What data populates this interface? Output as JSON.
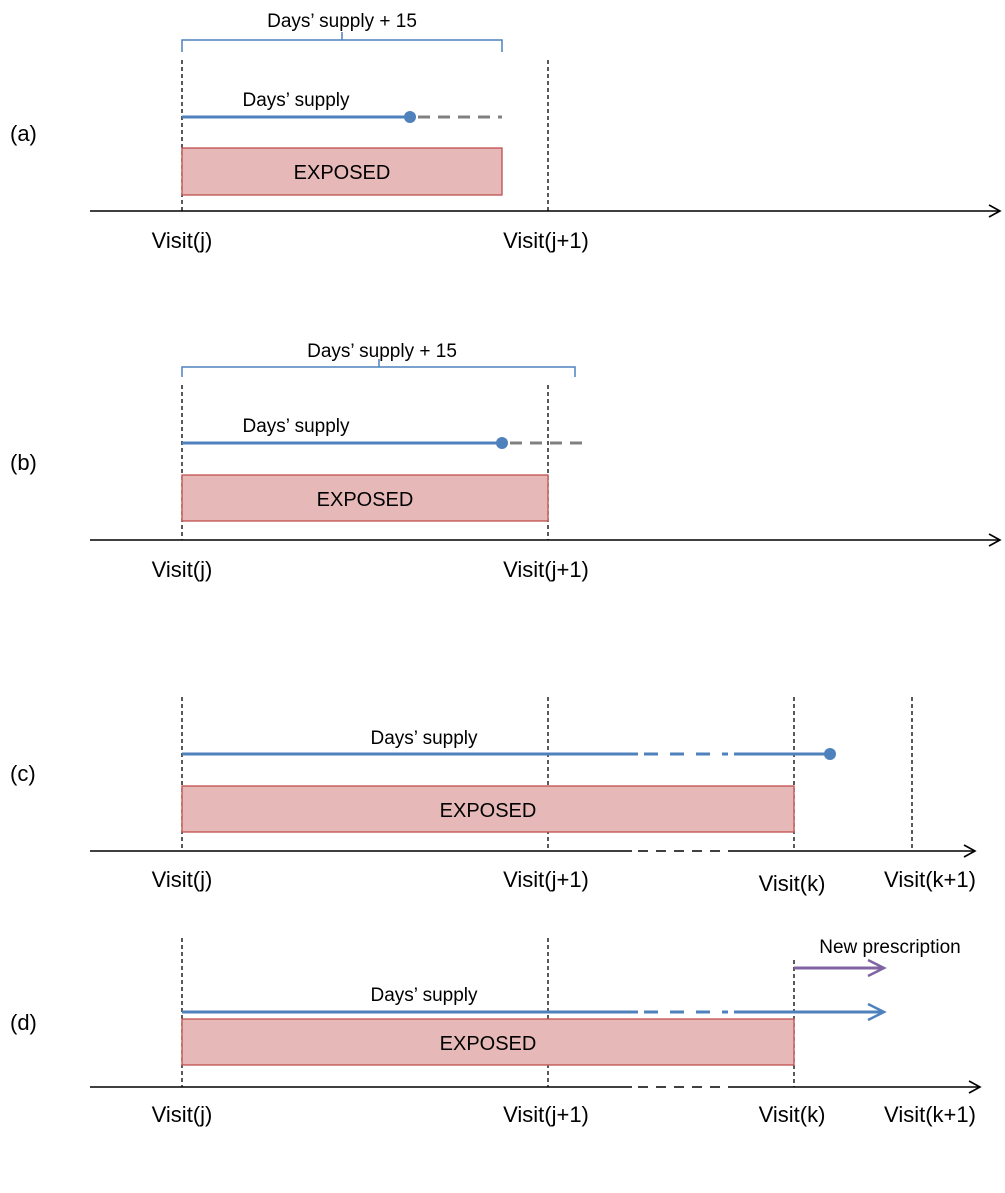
{
  "panels": [
    {
      "label": "(a)",
      "brace_label": "Days’ supply + 15",
      "supply_label": "Days’ supply",
      "exposed_label": "EXPOSED",
      "visits": [
        "Visit(j)",
        "Visit(j+1)"
      ]
    },
    {
      "label": "(b)",
      "brace_label": "Days’ supply + 15",
      "supply_label": "Days’ supply",
      "exposed_label": "EXPOSED",
      "visits": [
        "Visit(j)",
        "Visit(j+1)"
      ]
    },
    {
      "label": "(c)",
      "supply_label": "Days’ supply",
      "exposed_label": "EXPOSED",
      "visits": [
        "Visit(j)",
        "Visit(j+1)",
        "Visit(k)",
        "Visit(k+1)"
      ]
    },
    {
      "label": "(d)",
      "supply_label": "Days’ supply",
      "exposed_label": "EXPOSED",
      "new_prescription_label": "New prescription",
      "visits": [
        "Visit(j)",
        "Visit(j+1)",
        "Visit(k)",
        "Visit(k+1)"
      ]
    }
  ],
  "colors": {
    "supply_line": "#4F81BD",
    "dashed_extension": "#808080",
    "exposed_fill": "#E6B8B7",
    "exposed_border": "#C0504D",
    "brace": "#4F81BD",
    "new_prescription_arrow": "#8064A2",
    "axis": "#000000"
  }
}
